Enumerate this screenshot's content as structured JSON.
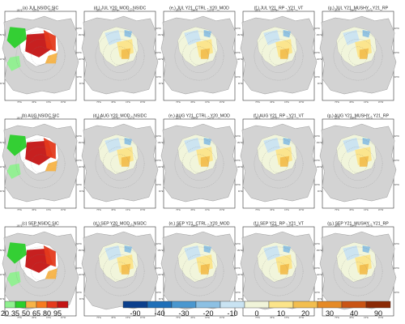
{
  "panels": [
    {
      "title": "(a) JUL NSIDC SIC",
      "kind": "abs",
      "row": 0,
      "col": 0
    },
    {
      "title": "(d,) JUL Y20_MOD - NSIDC",
      "kind": "diff",
      "row": 0,
      "col": 1
    },
    {
      "title": "(e,) JUL Y21_CTRL - Y20_MOD",
      "kind": "diff",
      "row": 0,
      "col": 2
    },
    {
      "title": "(f,) JUL Y21_RP - Y21_VT",
      "kind": "diff",
      "row": 0,
      "col": 3
    },
    {
      "title": "(g,) JUL Y21_MUSHY - Y21_RP",
      "kind": "diff",
      "row": 0,
      "col": 4
    },
    {
      "title": "(b) AUG NSIDC SIC",
      "kind": "abs",
      "row": 1,
      "col": 0
    },
    {
      "title": "(d,) AUG Y20_MOD - NSIDC",
      "kind": "diff",
      "row": 1,
      "col": 1
    },
    {
      "title": "(e,) AUG Y21_CTRL - Y20_MOD",
      "kind": "diff",
      "row": 1,
      "col": 2
    },
    {
      "title": "(f,) AUG Y21_RP - Y21_VT",
      "kind": "diff",
      "row": 1,
      "col": 3
    },
    {
      "title": "(g,) AUG Y21_MUSHY - Y21_RP",
      "kind": "diff",
      "row": 1,
      "col": 4
    },
    {
      "title": "(c) SEP NSIDC SIC",
      "kind": "abs",
      "row": 2,
      "col": 0
    },
    {
      "title": "(d,) SEP Y20_MOD - NSIDC",
      "kind": "diff",
      "row": 2,
      "col": 1
    },
    {
      "title": "(e,) SEP Y21_CTRL - Y20_MOD",
      "kind": "diff",
      "row": 2,
      "col": 2
    },
    {
      "title": "(f,) SEP Y21_RP - Y21_VT",
      "kind": "diff",
      "row": 2,
      "col": 3
    },
    {
      "title": "(g,) SEP Y21_MUSHY - Y21_RP",
      "kind": "diff",
      "row": 2,
      "col": 4
    }
  ],
  "map_ticks": {
    "top": [
      "180°E",
      "150°W",
      "120°W"
    ],
    "left": [
      "150°E",
      "120°E",
      "90°E"
    ],
    "right": [
      "90°W",
      "60°W",
      "30°W"
    ],
    "bottom": [
      "75°E",
      "45°E",
      "15°E",
      "15°W"
    ]
  },
  "colorbars": {
    "sic": {
      "labels": [
        "20",
        "35",
        "50",
        "65",
        "80",
        "95"
      ],
      "colors": [
        "#8ff08f",
        "#2bcf2b",
        "#f7b347",
        "#f77b1f",
        "#e53a1c",
        "#c41414"
      ]
    },
    "diff": {
      "labels": [
        "-90",
        "-40",
        "-30",
        "-20",
        "-10",
        "0",
        "10",
        "20",
        "30",
        "40",
        "90"
      ],
      "colors": [
        "#0b3f8c",
        "#1f6fb8",
        "#4a97cf",
        "#8cc0e3",
        "#c9e3f2",
        "#f0f4d9",
        "#fbe48a",
        "#f2be4f",
        "#e58a27",
        "#c95414",
        "#8b2a06"
      ]
    }
  }
}
